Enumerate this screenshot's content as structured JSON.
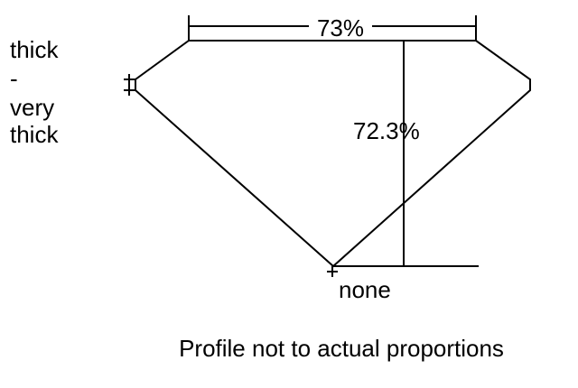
{
  "side_label": {
    "line1": "thick",
    "line2": "-",
    "line3": "very",
    "line4": "thick"
  },
  "width_dimension": "73%",
  "height_dimension": "72.3%",
  "bottom_label": "none",
  "caption": "Profile not to actual proportions",
  "colors": {
    "stroke": "#000000",
    "background": "#ffffff"
  }
}
